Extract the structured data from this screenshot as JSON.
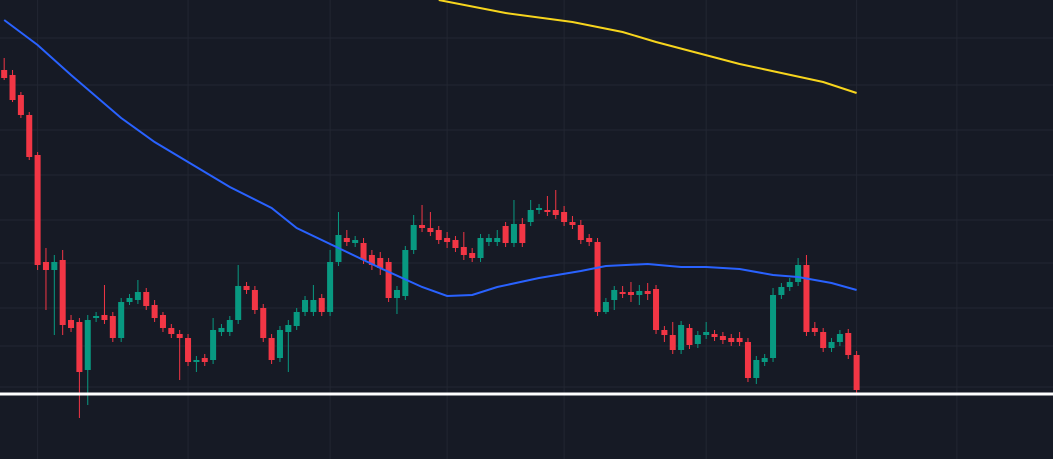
{
  "chart_data": {
    "type": "candlestick",
    "up_color": "#089981",
    "down_color": "#f23645",
    "ylim": [
      0,
      459
    ],
    "xlim": [
      -0.5,
      125.5
    ],
    "grid": true,
    "xticks": [
      4,
      22,
      39,
      53,
      67,
      84,
      102,
      114
    ],
    "yticks": [
      421,
      374,
      329,
      284,
      239,
      196,
      151,
      113,
      72
    ],
    "candles": [
      [
        389,
        401,
        379,
        381
      ],
      [
        384,
        389,
        357,
        359
      ],
      [
        364,
        367,
        341,
        344
      ],
      [
        344,
        347,
        299,
        302
      ],
      [
        304,
        307,
        189,
        194
      ],
      [
        197,
        211,
        149,
        189
      ],
      [
        189,
        204,
        124,
        197
      ],
      [
        199,
        209,
        124,
        134
      ],
      [
        139,
        144,
        127,
        131
      ],
      [
        137,
        141,
        41,
        87
      ],
      [
        89,
        144,
        54,
        139
      ],
      [
        141,
        147,
        137,
        143
      ],
      [
        144,
        174,
        135,
        139
      ],
      [
        143,
        147,
        117,
        121
      ],
      [
        121,
        161,
        117,
        157
      ],
      [
        157,
        165,
        154,
        161
      ],
      [
        159,
        179,
        155,
        167
      ],
      [
        167,
        171,
        149,
        153
      ],
      [
        154,
        159,
        137,
        141
      ],
      [
        144,
        147,
        127,
        131
      ],
      [
        131,
        135,
        121,
        125
      ],
      [
        125,
        129,
        79,
        121
      ],
      [
        121,
        125,
        93,
        97
      ],
      [
        97,
        103,
        87,
        99
      ],
      [
        101,
        105,
        93,
        97
      ],
      [
        99,
        141,
        95,
        129
      ],
      [
        127,
        135,
        123,
        131
      ],
      [
        127,
        143,
        123,
        139
      ],
      [
        139,
        194,
        135,
        173
      ],
      [
        173,
        177,
        165,
        169
      ],
      [
        169,
        173,
        145,
        149
      ],
      [
        151,
        155,
        117,
        121
      ],
      [
        121,
        125,
        95,
        99
      ],
      [
        101,
        133,
        97,
        129
      ],
      [
        127,
        139,
        87,
        134
      ],
      [
        133,
        151,
        129,
        147
      ],
      [
        147,
        163,
        143,
        159
      ],
      [
        147,
        174,
        143,
        159
      ],
      [
        161,
        165,
        143,
        147
      ],
      [
        147,
        209,
        143,
        197
      ],
      [
        197,
        247,
        193,
        224
      ],
      [
        221,
        229,
        213,
        217
      ],
      [
        216,
        223,
        212,
        219
      ],
      [
        216,
        221,
        195,
        199
      ],
      [
        204,
        209,
        189,
        194
      ],
      [
        201,
        207,
        184,
        191
      ],
      [
        197,
        201,
        157,
        161
      ],
      [
        161,
        173,
        145,
        169
      ],
      [
        163,
        213,
        159,
        209
      ],
      [
        209,
        244,
        205,
        234
      ],
      [
        234,
        254,
        227,
        231
      ],
      [
        231,
        247,
        223,
        227
      ],
      [
        229,
        233,
        215,
        219
      ],
      [
        221,
        227,
        211,
        217
      ],
      [
        219,
        223,
        207,
        211
      ],
      [
        212,
        227,
        199,
        204
      ],
      [
        206,
        211,
        197,
        201
      ],
      [
        201,
        225,
        197,
        221
      ],
      [
        217,
        225,
        213,
        221
      ],
      [
        217,
        229,
        213,
        221
      ],
      [
        233,
        237,
        212,
        216
      ],
      [
        216,
        259,
        212,
        235
      ],
      [
        235,
        241,
        212,
        216
      ],
      [
        237,
        259,
        233,
        249
      ],
      [
        249,
        255,
        245,
        251
      ],
      [
        249,
        263,
        243,
        247
      ],
      [
        249,
        269,
        240,
        244
      ],
      [
        247,
        253,
        233,
        237
      ],
      [
        237,
        243,
        230,
        234
      ],
      [
        234,
        239,
        215,
        219
      ],
      [
        221,
        225,
        213,
        217
      ],
      [
        217,
        221,
        143,
        147
      ],
      [
        147,
        161,
        145,
        157
      ],
      [
        159,
        173,
        149,
        169
      ],
      [
        167,
        173,
        161,
        165
      ],
      [
        167,
        177,
        157,
        164
      ],
      [
        164,
        174,
        154,
        168
      ],
      [
        168,
        176,
        159,
        165
      ],
      [
        170,
        174,
        125,
        129
      ],
      [
        129,
        133,
        117,
        124
      ],
      [
        124,
        137,
        105,
        109
      ],
      [
        109,
        138,
        105,
        134
      ],
      [
        131,
        135,
        110,
        114
      ],
      [
        115,
        128,
        111,
        124
      ],
      [
        124,
        137,
        120,
        127
      ],
      [
        125,
        129,
        118,
        122
      ],
      [
        123,
        127,
        115,
        119
      ],
      [
        121,
        125,
        113,
        117
      ],
      [
        121,
        127,
        113,
        117
      ],
      [
        117,
        121,
        77,
        81
      ],
      [
        81,
        103,
        75,
        99
      ],
      [
        97,
        105,
        93,
        101
      ],
      [
        101,
        171,
        97,
        164
      ],
      [
        164,
        176,
        160,
        172
      ],
      [
        172,
        181,
        168,
        177
      ],
      [
        177,
        201,
        173,
        194
      ],
      [
        194,
        204,
        123,
        127
      ],
      [
        131,
        137,
        123,
        127
      ],
      [
        127,
        131,
        107,
        111
      ],
      [
        111,
        121,
        107,
        117
      ],
      [
        117,
        129,
        113,
        125
      ],
      [
        126,
        130,
        100,
        104
      ],
      [
        104,
        108,
        65,
        69
      ]
    ],
    "lines": [
      {
        "color": "#2962ff",
        "x": [
          0,
          4,
          8,
          14,
          18,
          22,
          27,
          32,
          35,
          40,
          45,
          50,
          53,
          56,
          59,
          64,
          69,
          72,
          77,
          81,
          84,
          88,
          92,
          95,
          99,
          102
        ],
        "values": [
          439,
          414,
          384,
          341,
          317,
          297,
          272,
          251,
          231,
          211,
          191,
          172,
          163,
          164,
          172,
          181,
          188,
          193,
          195,
          192,
          192,
          190,
          184,
          182,
          176,
          169
        ]
      },
      {
        "color": "#f7d51d",
        "x": [
          52,
          60,
          68,
          74,
          78,
          83,
          88,
          93,
          98,
          102
        ],
        "values": [
          459,
          446,
          437,
          427,
          417,
          406,
          395,
          386,
          377,
          366
        ]
      }
    ],
    "price_line": {
      "value": 65,
      "color": "#ffffff"
    }
  }
}
